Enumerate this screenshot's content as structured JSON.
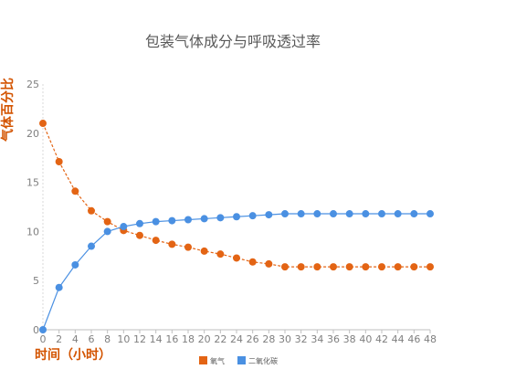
{
  "chart_data": {
    "type": "line",
    "title": "包装气体成分与呼吸透过率",
    "xlabel": "时间（小时）",
    "ylabel": "气体百分比",
    "x": [
      0,
      2,
      4,
      6,
      8,
      10,
      12,
      14,
      16,
      18,
      20,
      22,
      24,
      26,
      28,
      30,
      32,
      34,
      36,
      38,
      40,
      42,
      44,
      46,
      48
    ],
    "ylim": [
      0,
      25
    ],
    "yticks": [
      0,
      5,
      10,
      15,
      20,
      25
    ],
    "grid": false,
    "legend": "bottom",
    "series": [
      {
        "name": "氧气",
        "color": "#E36414",
        "line_style": "dashed",
        "values": [
          21,
          17.1,
          14.1,
          12.1,
          11.0,
          10.1,
          9.6,
          9.1,
          8.7,
          8.4,
          8.0,
          7.7,
          7.3,
          6.9,
          6.7,
          6.4,
          6.4,
          6.4,
          6.4,
          6.4,
          6.4,
          6.4,
          6.4,
          6.4,
          6.4
        ]
      },
      {
        "name": "二氧化碳",
        "color": "#4A90E2",
        "line_style": "solid",
        "values": [
          0,
          4.3,
          6.6,
          8.5,
          10.0,
          10.5,
          10.8,
          11.0,
          11.1,
          11.2,
          11.3,
          11.4,
          11.5,
          11.6,
          11.7,
          11.8,
          11.8,
          11.8,
          11.8,
          11.8,
          11.8,
          11.8,
          11.8,
          11.8,
          11.8
        ]
      }
    ],
    "colors": {
      "title": "#595959",
      "axis_label": "#D35400",
      "tick": "#7F7F7F",
      "axis_line": "#BFBFBF"
    }
  }
}
